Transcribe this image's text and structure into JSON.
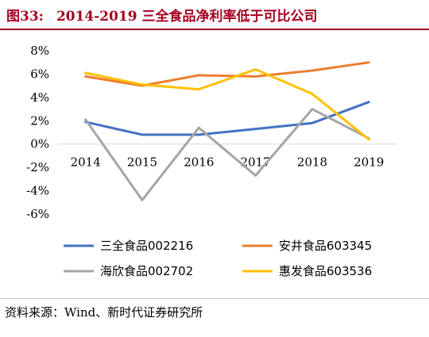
{
  "figure": {
    "number": "图33:",
    "title": "2014-2019 三全食品净利率低于可比公司"
  },
  "source": "资料来源：Wind、新时代证券研究所",
  "chart_data": {
    "type": "line",
    "x": [
      "2014",
      "2015",
      "2016",
      "2017",
      "2018",
      "2019"
    ],
    "ylim": [
      -6,
      8
    ],
    "yticks": [
      -6,
      -4,
      -2,
      0,
      2,
      4,
      6,
      8
    ],
    "ytick_labels": [
      "-6%",
      "-4%",
      "-2%",
      "0%",
      "2%",
      "4%",
      "6%",
      "8%"
    ],
    "grid": false,
    "legend_position": "bottom",
    "series": [
      {
        "name": "三全食品002216",
        "color": "#4472c4",
        "values": [
          1.9,
          0.8,
          0.8,
          1.3,
          1.8,
          3.6
        ]
      },
      {
        "name": "安井食品603345",
        "color": "#ed7d31",
        "values": [
          5.8,
          5.0,
          5.9,
          5.8,
          6.3,
          7.0
        ]
      },
      {
        "name": "海欣食品002702",
        "color": "#a5a5a5",
        "values": [
          2.1,
          -4.8,
          1.4,
          -2.7,
          3.0,
          0.5
        ]
      },
      {
        "name": "惠发食品603536",
        "color": "#ffc000",
        "values": [
          6.1,
          5.1,
          4.7,
          6.4,
          4.3,
          0.4
        ]
      }
    ]
  }
}
